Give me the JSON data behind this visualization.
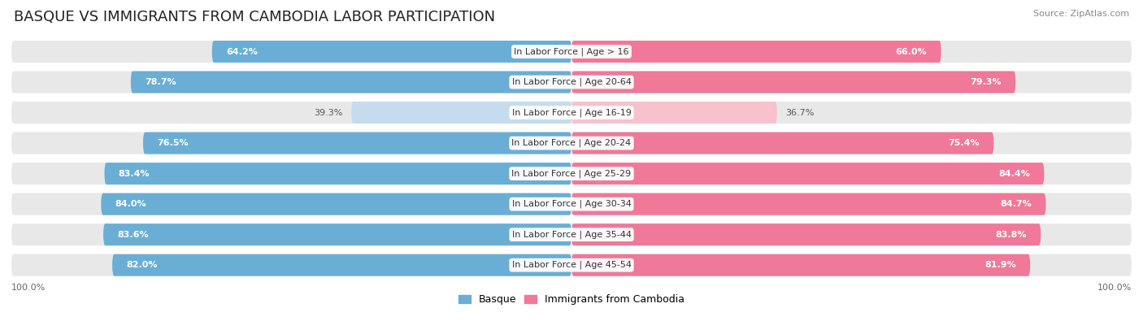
{
  "title": "BASQUE VS IMMIGRANTS FROM CAMBODIA LABOR PARTICIPATION",
  "source": "Source: ZipAtlas.com",
  "categories": [
    "In Labor Force | Age > 16",
    "In Labor Force | Age 20-64",
    "In Labor Force | Age 16-19",
    "In Labor Force | Age 20-24",
    "In Labor Force | Age 25-29",
    "In Labor Force | Age 30-34",
    "In Labor Force | Age 35-44",
    "In Labor Force | Age 45-54"
  ],
  "basque_values": [
    64.2,
    78.7,
    39.3,
    76.5,
    83.4,
    84.0,
    83.6,
    82.0
  ],
  "cambodia_values": [
    66.0,
    79.3,
    36.7,
    75.4,
    84.4,
    84.7,
    83.8,
    81.9
  ],
  "basque_color": "#6aaed6",
  "basque_color_light": "#c5dcee",
  "cambodia_color": "#f07898",
  "cambodia_color_light": "#f9c0ce",
  "row_bg_color": "#e8e8e8",
  "max_value": 100.0,
  "legend_basque": "Basque",
  "legend_cambodia": "Immigrants from Cambodia",
  "title_fontsize": 13,
  "label_fontsize": 8.0,
  "value_fontsize": 8.0,
  "axis_label_fontsize": 8,
  "background_color": "#ffffff"
}
